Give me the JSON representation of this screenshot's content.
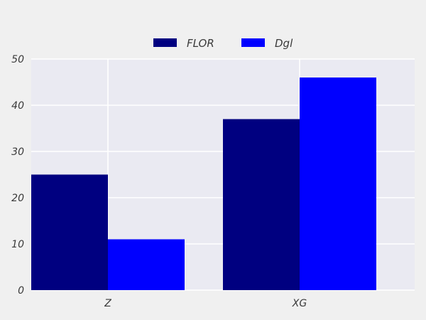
{
  "chart_data": {
    "type": "bar",
    "title": "",
    "xlabel": "",
    "ylabel": "",
    "categories": [
      "Z",
      "XG"
    ],
    "series": [
      {
        "name": "FLOR",
        "values": [
          25,
          37
        ],
        "color": "#000080"
      },
      {
        "name": "Dgl",
        "values": [
          11,
          46
        ],
        "color": "#0000ff"
      }
    ],
    "ylim": [
      0,
      50
    ],
    "yticks": [
      0,
      10,
      20,
      30,
      40,
      50
    ],
    "grid": true,
    "legend_position": "top-center",
    "background_color": "#eaeaf2",
    "figure_color": "#f0f0f0",
    "grid_color": "#ffffff"
  }
}
